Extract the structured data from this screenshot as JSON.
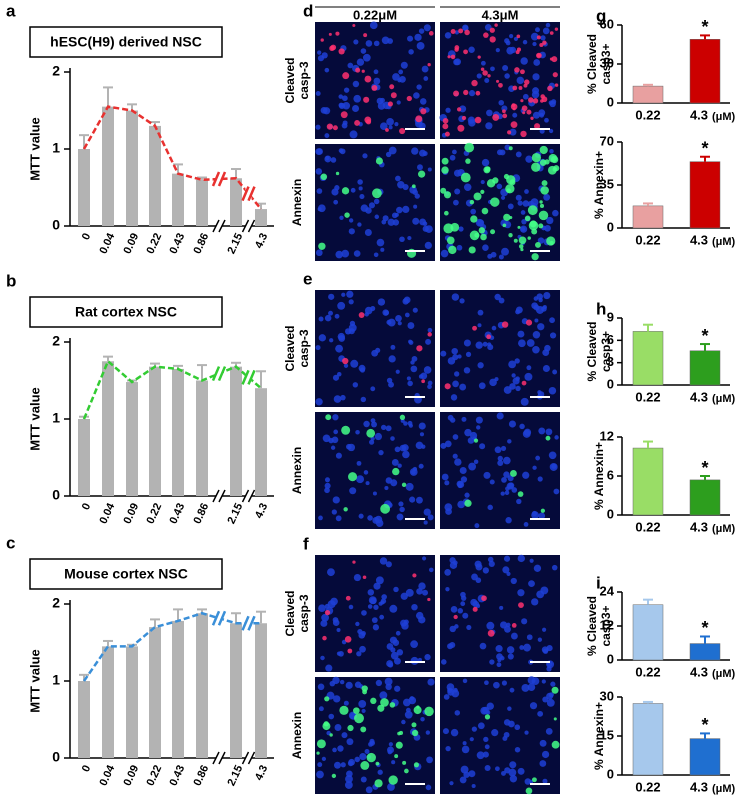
{
  "chart_data": [
    {
      "type": "bar",
      "panel": "a",
      "title": "hESC(H9) derived NSC",
      "ylabel": "MTT value",
      "categories": [
        "0",
        "0.04",
        "0.09",
        "0.22",
        "0.43",
        "0.86",
        "2.15",
        "4.3"
      ],
      "values": [
        1.0,
        1.55,
        1.5,
        1.3,
        0.68,
        0.6,
        0.62,
        0.22
      ],
      "errors": [
        0.18,
        0.25,
        0.08,
        0.05,
        0.12,
        0.03,
        0.12,
        0.07
      ],
      "color": "#b3b3b3",
      "line_color": "#e8312f",
      "ylim": [
        0,
        2
      ],
      "yticks": [
        0,
        1,
        2
      ],
      "axis_breaks": true
    },
    {
      "type": "bar",
      "panel": "b",
      "title": "Rat cortex NSC",
      "ylabel": "MTT value",
      "categories": [
        "0",
        "0.04",
        "0.09",
        "0.22",
        "0.43",
        "0.86",
        "2.15",
        "4.3"
      ],
      "values": [
        1.0,
        1.75,
        1.48,
        1.68,
        1.65,
        1.5,
        1.68,
        1.4
      ],
      "errors": [
        0.03,
        0.06,
        0.02,
        0.04,
        0.04,
        0.2,
        0.05,
        0.22
      ],
      "color": "#b3b3b3",
      "line_color": "#33cc33",
      "ylim": [
        0,
        2
      ],
      "yticks": [
        0,
        1,
        2
      ],
      "axis_breaks": true
    },
    {
      "type": "bar",
      "panel": "c",
      "title": "Mouse cortex NSC",
      "ylabel": "MTT value",
      "categories": [
        "0",
        "0.04",
        "0.09",
        "0.22",
        "0.43",
        "0.86",
        "2.15",
        "4.3"
      ],
      "values": [
        1.0,
        1.45,
        1.45,
        1.7,
        1.78,
        1.88,
        1.75,
        1.75
      ],
      "errors": [
        0.08,
        0.07,
        0.02,
        0.1,
        0.15,
        0.05,
        0.13,
        0.15
      ],
      "color": "#b3b3b3",
      "line_color": "#3a8fd8",
      "ylim": [
        0,
        2
      ],
      "yticks": [
        0,
        1,
        2
      ],
      "axis_breaks": true
    },
    {
      "type": "smallbar",
      "panel": "g",
      "ylabel": [
        "% Cleaved",
        "casp3+"
      ],
      "categories": [
        "0.22",
        "4.3"
      ],
      "xunit": "(μM)",
      "values": [
        13,
        49
      ],
      "errors": [
        1,
        3
      ],
      "colors": [
        "#e8a0a0",
        "#cc0000"
      ],
      "ylim": [
        0,
        60
      ],
      "yticks": [
        0,
        30,
        60
      ],
      "annotation": "*"
    },
    {
      "type": "smallbar",
      "ylabel": [
        "% Annexin+"
      ],
      "categories": [
        "0.22",
        "4.3"
      ],
      "xunit": "(μM)",
      "values": [
        18,
        54
      ],
      "errors": [
        2,
        4
      ],
      "colors": [
        "#e8a0a0",
        "#cc0000"
      ],
      "ylim": [
        0,
        70
      ],
      "yticks": [
        0,
        35,
        70
      ],
      "annotation": "*"
    },
    {
      "type": "smallbar",
      "panel": "h",
      "ylabel": [
        "% Cleaved",
        "casp3+"
      ],
      "categories": [
        "0.22",
        "4.3"
      ],
      "xunit": "(μM)",
      "values": [
        7.2,
        4.6
      ],
      "errors": [
        0.9,
        0.9
      ],
      "colors": [
        "#99dd66",
        "#2d9e1e"
      ],
      "ylim": [
        0,
        9
      ],
      "yticks": [
        0,
        3,
        6,
        9
      ],
      "annotation": "*"
    },
    {
      "type": "smallbar",
      "ylabel": [
        "% Annexin+"
      ],
      "categories": [
        "0.22",
        "4.3"
      ],
      "xunit": "(μM)",
      "values": [
        10.3,
        5.4
      ],
      "errors": [
        1,
        0.6
      ],
      "colors": [
        "#99dd66",
        "#2d9e1e"
      ],
      "ylim": [
        0,
        12
      ],
      "yticks": [
        0,
        6,
        12
      ],
      "annotation": "*"
    },
    {
      "type": "smallbar",
      "panel": "i",
      "ylabel": [
        "% Cleaved",
        "casp3+"
      ],
      "categories": [
        "0.22",
        "4.3"
      ],
      "xunit": "(μM)",
      "values": [
        19.5,
        5.8
      ],
      "errors": [
        1.8,
        2.5
      ],
      "colors": [
        "#a6c8ec",
        "#1f6fd0"
      ],
      "ylim": [
        0,
        24
      ],
      "yticks": [
        0,
        12,
        24
      ],
      "annotation": "*"
    },
    {
      "type": "smallbar",
      "ylabel": [
        "% Annexin+"
      ],
      "categories": [
        "0.22",
        "4.3"
      ],
      "xunit": "(μM)",
      "values": [
        27.5,
        14
      ],
      "errors": [
        0.6,
        2
      ],
      "colors": [
        "#a6c8ec",
        "#1f6fd0"
      ],
      "ylim": [
        0,
        30
      ],
      "yticks": [
        0,
        15,
        30
      ],
      "annotation": "*"
    }
  ],
  "images": {
    "columns": [
      "0.22μM",
      "4.3μM"
    ],
    "panels": [
      {
        "letter": "d",
        "rows": [
          [
            "Cleaved",
            "casp-3"
          ],
          [
            "Annexin"
          ]
        ]
      },
      {
        "letter": "e",
        "rows": [
          [
            "Cleaved",
            "casp-3"
          ],
          [
            "Annexin"
          ]
        ]
      },
      {
        "letter": "f",
        "rows": [
          [
            "Cleaved",
            "casp-3"
          ],
          [
            "Annexin"
          ]
        ]
      }
    ]
  }
}
